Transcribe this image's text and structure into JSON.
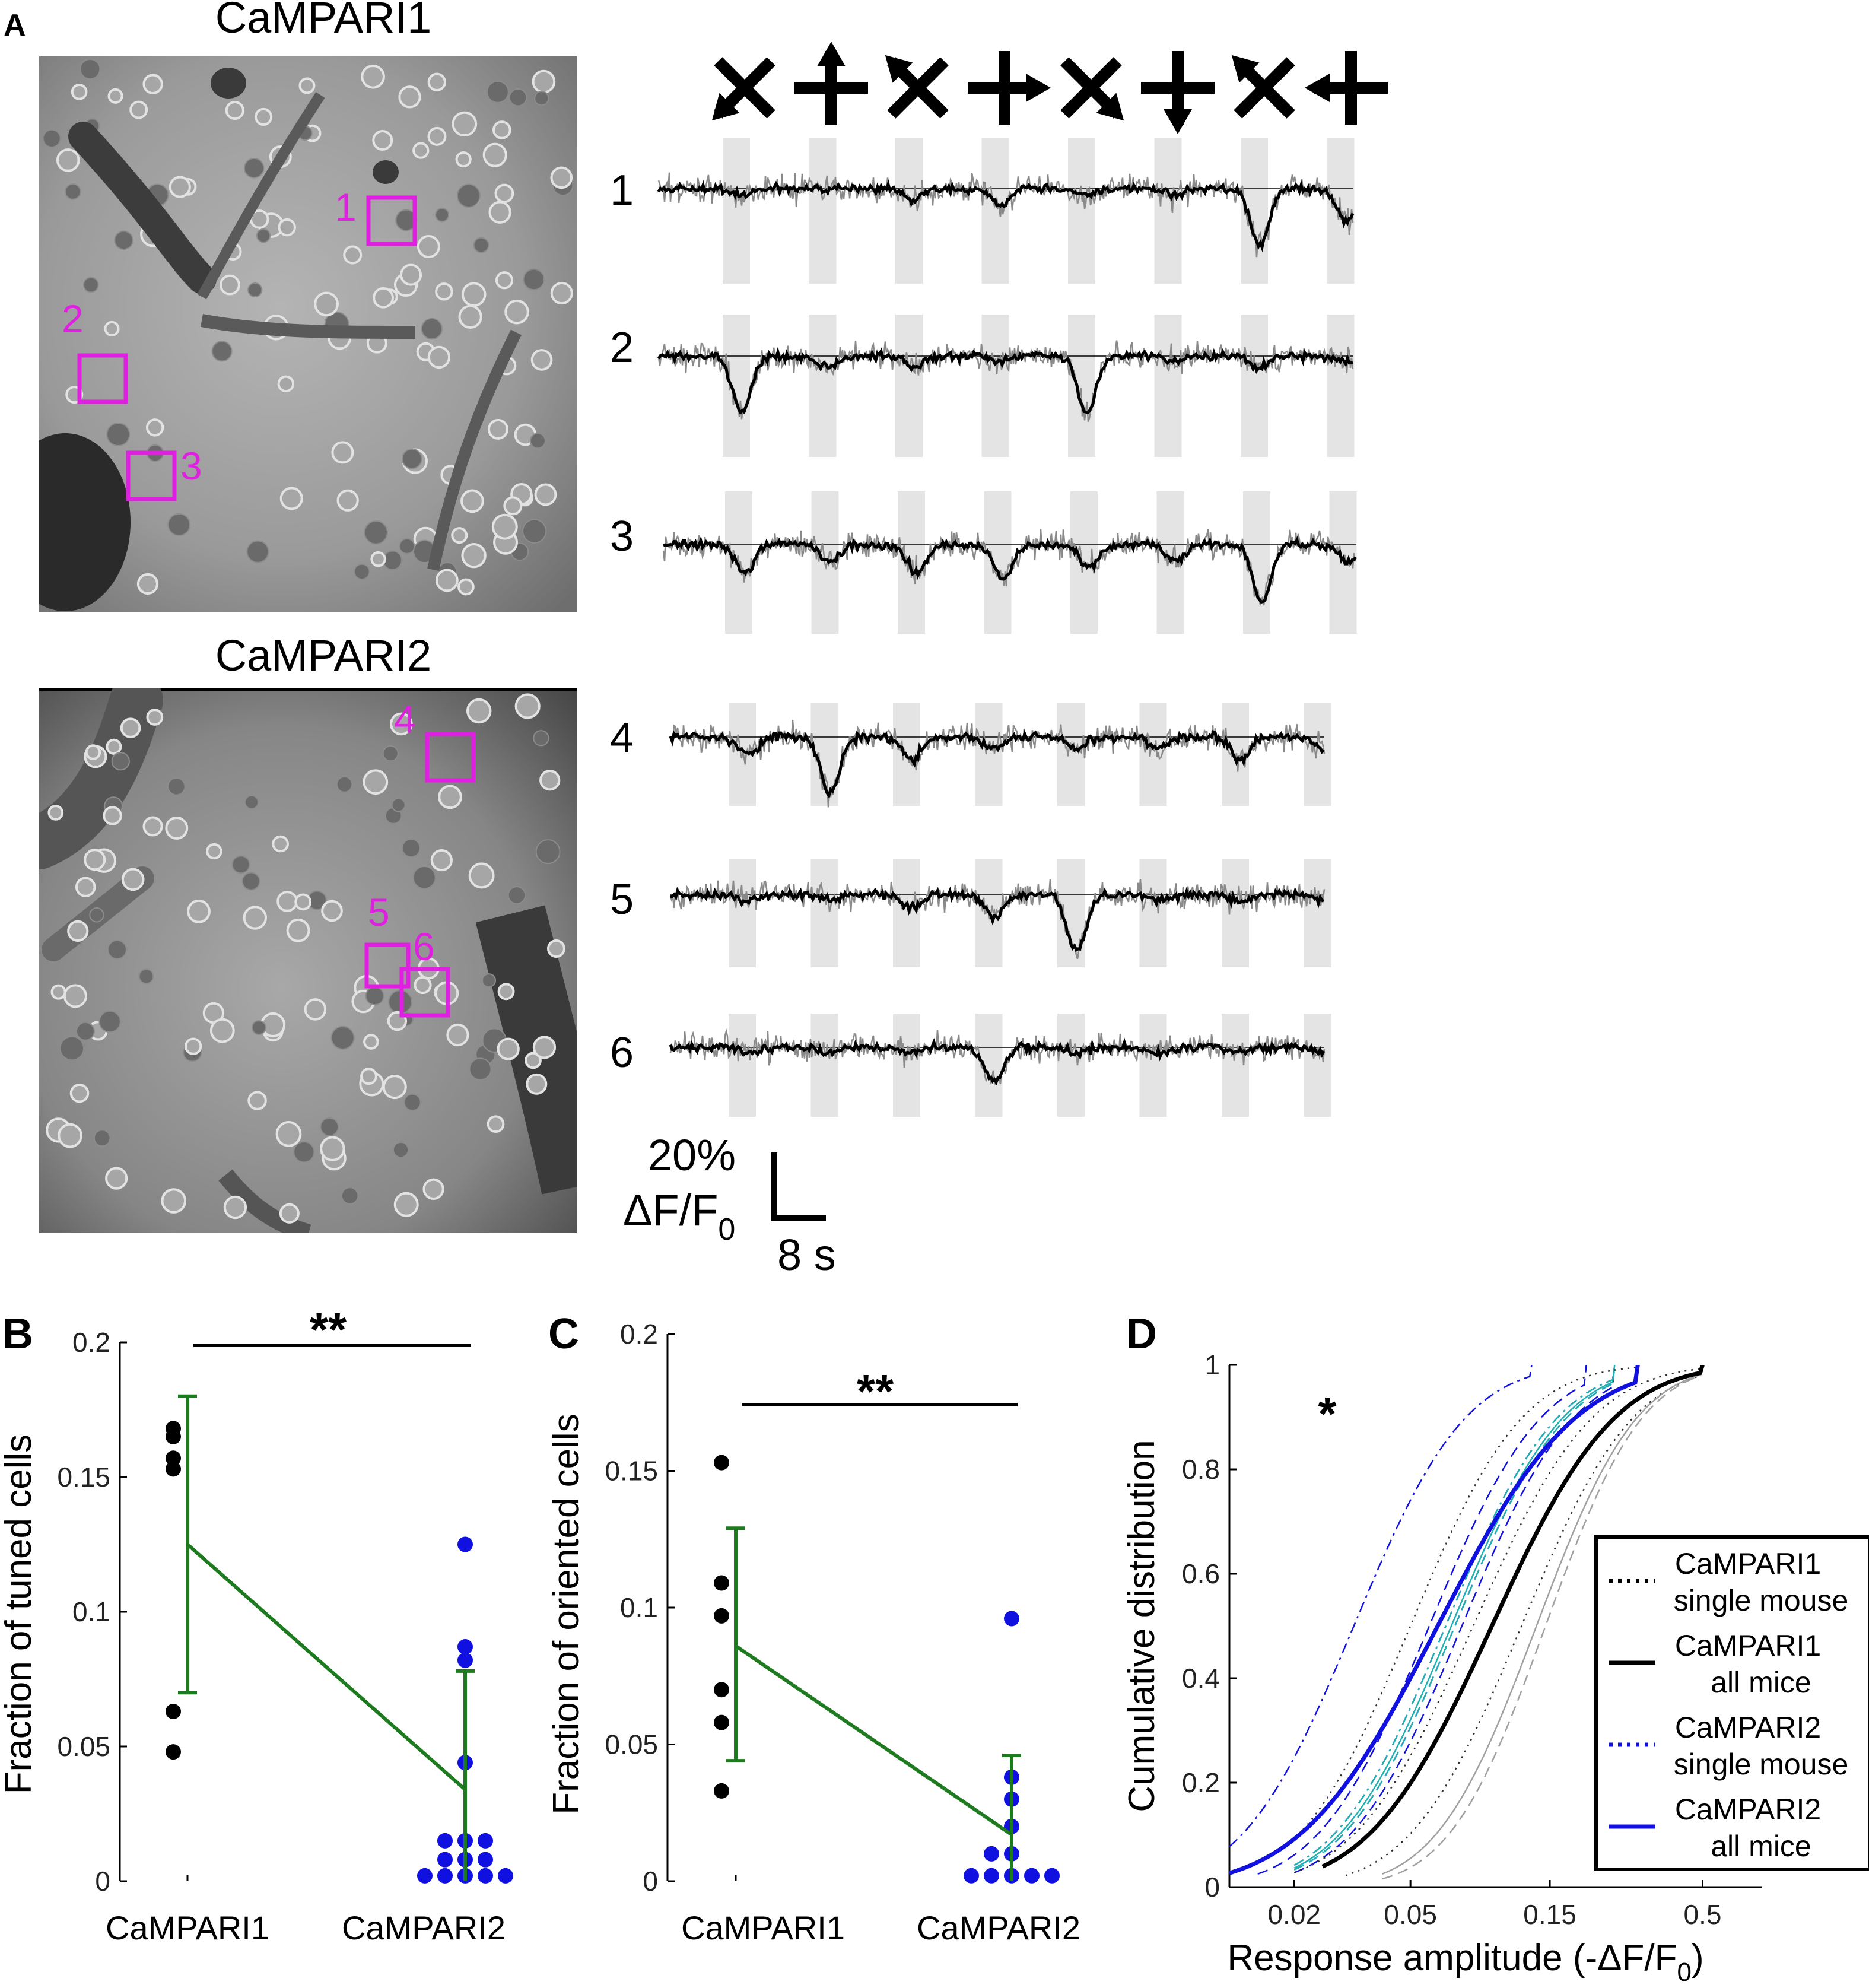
{
  "panels": {
    "A": {
      "label": "A",
      "image_titles": [
        "CaMPARI1",
        "CaMPARI2"
      ],
      "roi_labels": [
        "1",
        "2",
        "3",
        "4",
        "5",
        "6"
      ],
      "trace_labels": [
        "1",
        "2",
        "3",
        "4",
        "5",
        "6"
      ],
      "stimulus_directions": [
        "down-left",
        "up",
        "up-left",
        "right",
        "down-right",
        "down",
        "up-left",
        "left"
      ],
      "stimulus_blocks_per_trace": 8,
      "trace_responses": {
        "1": [
          0.1,
          0,
          0.2,
          0.3,
          0.1,
          0.1,
          1.0,
          0.6
        ],
        "2": [
          1.0,
          0.2,
          0.2,
          0.1,
          1.0,
          0.1,
          0.2,
          0.1
        ],
        "3": [
          0.5,
          0.3,
          0.5,
          0.6,
          0.4,
          0.3,
          1.0,
          0.3
        ],
        "4": [
          0.3,
          1.0,
          0.4,
          0.2,
          0.2,
          0.2,
          0.4,
          0.2
        ],
        "5": [
          0.1,
          0.1,
          0.2,
          0.4,
          1.0,
          0.1,
          0.1,
          0.1
        ],
        "6": [
          0.1,
          0.1,
          0.1,
          0.6,
          0.1,
          0.1,
          0.1,
          0.1
        ]
      },
      "scale_bar": {
        "y_value": "20%",
        "y_quantity": "ΔF/F",
        "y_subscript": "0",
        "x_value": "8 s"
      },
      "colors": {
        "roi_box": "#e020e0",
        "trace_raw": "#8a8a8a",
        "trace_mean": "#000000",
        "stim_block": "#e4e4e4"
      }
    },
    "B": {
      "label": "B",
      "significance": "**",
      "ylabel": "Fraction of tuned cells",
      "yticks": [
        "0",
        "0.05",
        "0.1",
        "0.15",
        "0.2"
      ]
    },
    "C": {
      "label": "C",
      "significance": "**",
      "ylabel": "Fraction of oriented cells",
      "yticks": [
        "0",
        "0.05",
        "0.1",
        "0.15",
        "0.2"
      ]
    },
    "D": {
      "label": "D",
      "significance": "*",
      "ylabel": "Cumulative distribution",
      "xlabel_main": "Response amplitude (-ΔF/F",
      "xlabel_sub": "0",
      "xlabel_end": ")",
      "yticks": [
        "0",
        "0.2",
        "0.4",
        "0.6",
        "0.8",
        "1"
      ],
      "xticks": [
        "0.02",
        "0.05",
        "0.15",
        "0.5"
      ],
      "legend": [
        {
          "line1": "CaMPARI1",
          "line2": "single mouse",
          "style": "dotted",
          "color": "#000000"
        },
        {
          "line1": "CaMPARI1",
          "line2": "all mice",
          "style": "solid",
          "color": "#000000"
        },
        {
          "line1": "CaMPARI2",
          "line2": "single mouse",
          "style": "dotted",
          "color": "#1010e0"
        },
        {
          "line1": "CaMPARI2",
          "line2": "all mice",
          "style": "solid",
          "color": "#1010e0"
        }
      ]
    }
  },
  "chart_data": [
    {
      "panel": "B",
      "type": "scatter",
      "categories": [
        "CaMPARI1",
        "CaMPARI2"
      ],
      "ylabel": "Fraction of tuned cells",
      "ylim": [
        0,
        0.2
      ],
      "series": [
        {
          "category": "CaMPARI1",
          "color": "#000000",
          "values": [
            0.165,
            0.168,
            0.153,
            0.157,
            0.063,
            0.048
          ]
        },
        {
          "category": "CaMPARI2",
          "color": "#1010e0",
          "values": [
            0.125,
            0.087,
            0.082,
            0.044,
            0.015,
            0.015,
            0.015,
            0.008,
            0.008,
            0.008,
            0.002,
            0.002,
            0.002,
            0.002,
            0.002
          ]
        }
      ],
      "mean": [
        0.125,
        0.034
      ],
      "error_bars": [
        [
          0.07,
          0.18
        ],
        [
          0.0,
          0.078
        ]
      ],
      "mean_line_color": "#1e7a1e",
      "bracket": {
        "from": "CaMPARI1",
        "to": "CaMPARI2",
        "label": "**"
      }
    },
    {
      "panel": "C",
      "type": "scatter",
      "categories": [
        "CaMPARI1",
        "CaMPARI2"
      ],
      "ylabel": "Fraction of oriented cells",
      "ylim": [
        0,
        0.2
      ],
      "series": [
        {
          "category": "CaMPARI1",
          "color": "#000000",
          "values": [
            0.153,
            0.109,
            0.097,
            0.07,
            0.058,
            0.033
          ]
        },
        {
          "category": "CaMPARI2",
          "color": "#1010e0",
          "values": [
            0.096,
            0.038,
            0.03,
            0.02,
            0.01,
            0.01,
            0.002,
            0.002,
            0.002,
            0.002,
            0.002
          ]
        }
      ],
      "mean": [
        0.086,
        0.017
      ],
      "error_bars": [
        [
          0.044,
          0.129
        ],
        [
          0.0,
          0.046
        ]
      ],
      "mean_line_color": "#1e7a1e",
      "bracket": {
        "from": "CaMPARI1",
        "to": "CaMPARI2",
        "label": "**"
      }
    },
    {
      "panel": "D",
      "type": "line",
      "xscale": "log",
      "xlim": [
        0.012,
        0.8
      ],
      "ylim": [
        0,
        1
      ],
      "ylabel": "Cumulative distribution",
      "xlabel": "Response amplitude (-ΔF/F0)",
      "series": [
        {
          "name": "CaMPARI1 all mice",
          "color": "#000000",
          "style": "solid",
          "width": 7,
          "median": 0.095,
          "spread": 0.33,
          "start": 0.025,
          "end": 0.5
        },
        {
          "name": "CaMPARI2 all mice",
          "color": "#1010e0",
          "style": "solid",
          "width": 7,
          "median": 0.062,
          "spread": 0.37,
          "start": 0.012,
          "end": 0.3
        },
        {
          "color": "#1010e0",
          "style": "dashdot",
          "width": 2.5,
          "median": 0.032,
          "spread": 0.3,
          "start": 0.012,
          "end": 0.13
        },
        {
          "color": "#1010e0",
          "style": "dashed",
          "width": 2.5,
          "median": 0.058,
          "spread": 0.3,
          "start": 0.015,
          "end": 0.2
        },
        {
          "color": "#1010e0",
          "style": "dashdot",
          "width": 2.5,
          "median": 0.066,
          "spread": 0.3,
          "start": 0.02,
          "end": 0.25
        },
        {
          "color": "#1010e0",
          "style": "dashed",
          "width": 2.5,
          "median": 0.075,
          "spread": 0.3,
          "start": 0.02,
          "end": 0.25
        },
        {
          "color": "#1010e0",
          "style": "dashed",
          "width": 2.5,
          "median": 0.071,
          "spread": 0.3,
          "start": 0.02,
          "end": 0.25
        },
        {
          "color": "#20b0b0",
          "style": "dashdot",
          "width": 2.5,
          "median": 0.066,
          "spread": 0.3,
          "start": 0.02,
          "end": 0.25
        },
        {
          "color": "#20b0b0",
          "style": "dashed",
          "width": 2.5,
          "median": 0.071,
          "spread": 0.3,
          "start": 0.02,
          "end": 0.25
        },
        {
          "color": "#20b0b0",
          "style": "solid",
          "width": 2.5,
          "median": 0.069,
          "spread": 0.3,
          "start": 0.02,
          "end": 0.25
        },
        {
          "color": "#303030",
          "style": "dotted",
          "width": 2.5,
          "median": 0.05,
          "spread": 0.3,
          "start": 0.02,
          "end": 0.3
        },
        {
          "color": "#303030",
          "style": "dotted",
          "width": 2.5,
          "median": 0.082,
          "spread": 0.32,
          "start": 0.02,
          "end": 0.5
        },
        {
          "color": "#303030",
          "style": "dotted",
          "width": 2.5,
          "median": 0.12,
          "spread": 0.3,
          "start": 0.03,
          "end": 0.5
        },
        {
          "color": "#a0a0a0",
          "style": "solid",
          "width": 2.5,
          "median": 0.135,
          "spread": 0.27,
          "start": 0.04,
          "end": 0.5
        },
        {
          "color": "#a0a0a0",
          "style": "dashed",
          "width": 2.5,
          "median": 0.145,
          "spread": 0.26,
          "start": 0.04,
          "end": 0.5
        }
      ]
    }
  ]
}
